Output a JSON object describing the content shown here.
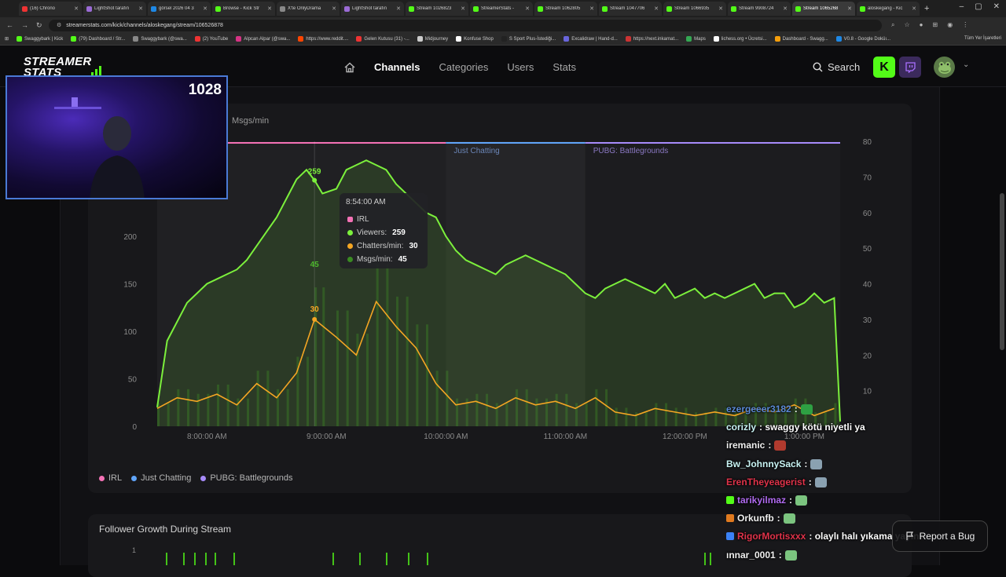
{
  "browser": {
    "tabs": [
      {
        "title": "(16) Chrono",
        "color": "#e33"
      },
      {
        "title": "LightShot tarafın",
        "color": "#9b6bd6"
      },
      {
        "title": "görsel 2026 04 3",
        "color": "#1e88e5"
      },
      {
        "title": "Browse - Kick Str",
        "color": "#53fc18"
      },
      {
        "title": "X'te OnlyDrama",
        "color": "#888"
      },
      {
        "title": "LightShot tarafın",
        "color": "#9b6bd6"
      },
      {
        "title": "Stream 1026823",
        "color": "#53fc18"
      },
      {
        "title": "StreamerStats - ",
        "color": "#53fc18"
      },
      {
        "title": "Stream 1062805",
        "color": "#53fc18"
      },
      {
        "title": "Stream 1047706",
        "color": "#53fc18"
      },
      {
        "title": "Stream 1066935",
        "color": "#53fc18"
      },
      {
        "title": "Stream 9908724",
        "color": "#53fc18"
      },
      {
        "title": "Stream 1065268",
        "color": "#53fc18"
      },
      {
        "title": "aloskegang - Kic",
        "color": "#53fc18"
      }
    ],
    "active_tab": 12,
    "url": "streamerstats.com/kick/channels/aloskegang/stream/106526878",
    "bookmarks": [
      {
        "label": "Swaggybark | Kick",
        "color": "#53fc18"
      },
      {
        "label": "(79) Dashboard / Str...",
        "color": "#53fc18"
      },
      {
        "label": "Swaggybark (@swa...",
        "color": "#888"
      },
      {
        "label": "(2) YouTube",
        "color": "#e33"
      },
      {
        "label": "Alpcan Alpar (@swa...",
        "color": "#d63384"
      },
      {
        "label": "https://www.reddit....",
        "color": "#ff4500"
      },
      {
        "label": "Gelen Kutusu (31) -...",
        "color": "#e33"
      },
      {
        "label": "Midjourney",
        "color": "#ccc"
      },
      {
        "label": "Konfuse Shop",
        "color": "#fff"
      },
      {
        "label": "S Sport Plus-İstediği...",
        "color": "#222"
      },
      {
        "label": "Excalidraw | Hand-d...",
        "color": "#6965db"
      },
      {
        "label": "https://next.inkarnat...",
        "color": "#c33"
      },
      {
        "label": "Maps",
        "color": "#34a853"
      },
      {
        "label": "lichess.org • Ücretsi...",
        "color": "#fff"
      },
      {
        "label": "Dashboard - Swagg...",
        "color": "#f59e0b"
      },
      {
        "label": "V0.8 - Google Doküı...",
        "color": "#1e88e5"
      }
    ],
    "all_bookmarks": "Tüm Yer İşaretleri"
  },
  "site": {
    "logo_line1": "STREAMER",
    "logo_line2": "STATS",
    "nav": {
      "channels": "Channels",
      "categories": "Categories",
      "users": "Users",
      "stats": "Stats"
    },
    "search_label": "Search",
    "kick_letter": "K",
    "accent": "#53fc18"
  },
  "chart": {
    "right_axis_label": "Msgs/min",
    "category_labels": {
      "just_chatting": "Just Chatting",
      "pubg": "PUBG: Battlegrounds"
    },
    "legend": [
      {
        "name": "IRL",
        "color": "#f472b6"
      },
      {
        "name": "Just Chatting",
        "color": "#60a5fa"
      },
      {
        "name": "PUBG: Battlegrounds",
        "color": "#a78bfa"
      }
    ],
    "tooltip": {
      "time": "8:54:00 AM",
      "category": "IRL",
      "viewers_label": "Viewers:",
      "viewers": "259",
      "chatters_label": "Chatters/min:",
      "chatters": "30",
      "msgs_label": "Msgs/min:",
      "msgs": "45"
    },
    "point_labels": {
      "viewers": "259",
      "msgs": "45",
      "chatters": "30"
    }
  },
  "chart_data": {
    "type": "line",
    "x_ticks": [
      "8:00:00 AM",
      "9:00:00 AM",
      "10:00:00 AM",
      "11:00:00 AM",
      "12:00:00 PM",
      "1:00:00 PM"
    ],
    "left_y_ticks": [
      0,
      50,
      100,
      150,
      200
    ],
    "right_y_ticks": [
      10,
      20,
      30,
      40,
      50,
      60,
      70,
      80
    ],
    "left_ylim": [
      0,
      300
    ],
    "right_ylim": [
      0,
      80
    ],
    "segments": [
      {
        "category": "IRL",
        "x_from": "7:35 AM",
        "x_to": "10:00 AM"
      },
      {
        "category": "Just Chatting",
        "x_from": "10:00 AM",
        "x_to": "11:10 AM"
      },
      {
        "category": "PUBG: Battlegrounds",
        "x_from": "11:10 AM",
        "x_to": "1:30 PM"
      }
    ],
    "series": [
      {
        "name": "Viewers",
        "axis": "left",
        "color": "#7cf03c",
        "times": [
          "7:35",
          "7:40",
          "7:45",
          "7:50",
          "7:55",
          "8:00",
          "8:05",
          "8:10",
          "8:15",
          "8:20",
          "8:25",
          "8:30",
          "8:35",
          "8:40",
          "8:45",
          "8:50",
          "8:54",
          "8:58",
          "9:05",
          "9:10",
          "9:15",
          "9:20",
          "9:25",
          "9:30",
          "9:35",
          "9:40",
          "9:45",
          "9:50",
          "9:55",
          "10:00",
          "10:05",
          "10:10",
          "10:15",
          "10:20",
          "10:25",
          "10:30",
          "10:35",
          "10:40",
          "10:45",
          "10:50",
          "10:55",
          "11:00",
          "11:05",
          "11:10",
          "11:15",
          "11:20",
          "11:25",
          "11:30",
          "11:35",
          "11:40",
          "11:45",
          "11:50",
          "11:55",
          "12:00",
          "12:05",
          "12:10",
          "12:15",
          "12:20",
          "12:25",
          "12:30",
          "12:35",
          "12:40",
          "12:45",
          "12:50",
          "12:55",
          "13:00",
          "13:05",
          "13:10",
          "13:15",
          "13:18"
        ],
        "values": [
          20,
          90,
          110,
          130,
          140,
          150,
          155,
          160,
          165,
          175,
          190,
          205,
          220,
          240,
          260,
          270,
          259,
          245,
          250,
          270,
          275,
          280,
          275,
          270,
          255,
          245,
          235,
          225,
          220,
          200,
          185,
          175,
          170,
          165,
          160,
          170,
          175,
          180,
          175,
          170,
          165,
          160,
          150,
          140,
          135,
          145,
          150,
          155,
          150,
          145,
          140,
          150,
          135,
          140,
          145,
          135,
          140,
          135,
          140,
          145,
          150,
          135,
          140,
          140,
          125,
          130,
          140,
          130,
          135,
          5
        ]
      },
      {
        "name": "Chatters/min",
        "axis": "right",
        "color": "#f5a623",
        "times": [
          "7:35",
          "7:45",
          "7:55",
          "8:05",
          "8:15",
          "8:25",
          "8:35",
          "8:45",
          "8:54",
          "9:05",
          "9:15",
          "9:25",
          "9:35",
          "9:45",
          "9:55",
          "10:05",
          "10:15",
          "10:25",
          "10:35",
          "10:45",
          "10:55",
          "11:05",
          "11:15",
          "11:25",
          "11:35",
          "11:45",
          "11:55",
          "12:05",
          "12:15",
          "12:25",
          "12:35",
          "12:45",
          "12:55",
          "13:05",
          "13:15"
        ],
        "values": [
          5,
          8,
          7,
          9,
          6,
          12,
          8,
          15,
          30,
          25,
          20,
          35,
          28,
          22,
          12,
          6,
          7,
          5,
          8,
          6,
          7,
          5,
          8,
          4,
          3,
          5,
          4,
          3,
          4,
          3,
          5,
          4,
          6,
          3,
          5
        ]
      },
      {
        "name": "Msgs/min",
        "axis": "right",
        "color": "#3a8a22",
        "times": [
          "8:54"
        ],
        "values": [
          45
        ]
      }
    ]
  },
  "follower": {
    "title": "Follower Growth During Stream",
    "y_tick": "1"
  },
  "overlay": {
    "viewer_count": "1028",
    "chat": [
      {
        "user": "ezergeeer3182",
        "user_color": "#5b8ad6",
        "text": ":",
        "emote": "#2ea043",
        "badge": ""
      },
      {
        "user": "corizly",
        "user_color": "#c9f4f4",
        "text": ": swaggy kötü niyetli ya",
        "emote": "",
        "badge": ""
      },
      {
        "user": "iremanic",
        "user_color": "#f0f0f0",
        "text": ":",
        "emote": "#b03a2e",
        "badge": ""
      },
      {
        "user": "Bw_JohnnySack",
        "user_color": "#c9f4f4",
        "text": ":",
        "emote": "#8aa1b1",
        "badge": ""
      },
      {
        "user": "ErenTheyeagerist",
        "user_color": "#e0334a",
        "text": ":",
        "emote": "#8aa1b1",
        "badge": ""
      },
      {
        "user": "tarikyilmaz",
        "user_color": "#b06bf0",
        "text": ":",
        "emote": "#7bc47f",
        "badge": "#53fc18"
      },
      {
        "user": "Orkunfb",
        "user_color": "#f0f0f0",
        "text": ":",
        "emote": "#7bc47f",
        "badge": "#e07a1f"
      },
      {
        "user": "RigorMortisxxx",
        "user_color": "#e0334a",
        "text": ": olaylı halı yıkama yayını",
        "emote": "",
        "badge": "#3b82f6"
      },
      {
        "user": "ınnar_0001",
        "user_color": "#f0f0f0",
        "text": ":",
        "emote": "#7bc47f",
        "badge": ""
      }
    ]
  },
  "report_bug": "Report a Bug"
}
